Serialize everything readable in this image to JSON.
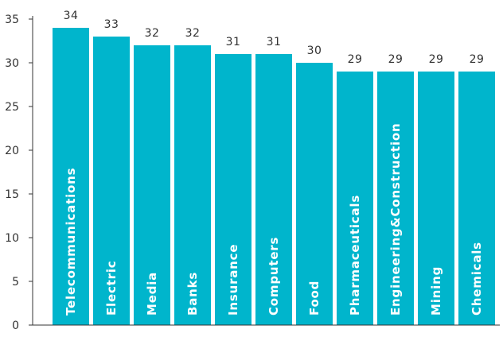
{
  "chart_data": {
    "type": "bar",
    "categories": [
      "Telecommunications",
      "Electric",
      "Media",
      "Banks",
      "Insurance",
      "Computers",
      "Food",
      "Pharmaceuticals",
      "Engineering&Construction",
      "Mining",
      "Chemicals"
    ],
    "values": [
      34,
      33,
      32,
      32,
      31,
      31,
      30,
      29,
      29,
      29,
      29
    ],
    "ylim": [
      0,
      35
    ],
    "yticks": [
      0,
      5,
      10,
      15,
      20,
      25,
      30,
      35
    ],
    "grid": false,
    "bar_color": "#00b5cc",
    "axis_color": "#333333"
  }
}
